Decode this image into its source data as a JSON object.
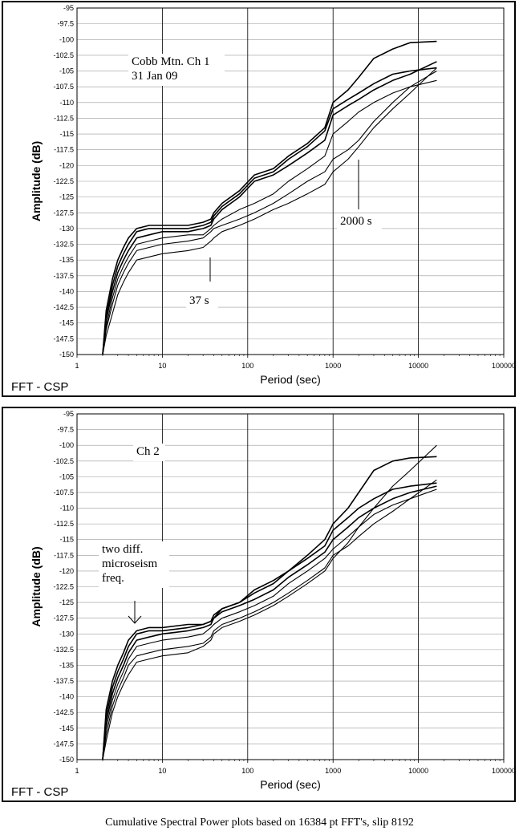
{
  "caption": "Cumulative Spectral Power plots based on 16384 pt FFT's, slip 8192",
  "chart_data": [
    {
      "type": "line",
      "id": "top",
      "xscale": "log",
      "xlim": [
        1,
        100000
      ],
      "ylim": [
        -150,
        -95
      ],
      "grid": true,
      "xlabel": "Period (sec)",
      "ylabel": "Amplitude (dB)",
      "corner_label": "FFT - CSP",
      "xticks": [
        "1",
        "10",
        "100",
        "1000",
        "10000",
        "100000"
      ],
      "yticks": [
        "-95",
        "-97.5",
        "-100",
        "-102.5",
        "-105",
        "-107.5",
        "-110",
        "-112.5",
        "-115",
        "-117.5",
        "-120",
        "-122.5",
        "-125",
        "-127.5",
        "-130",
        "-132.5",
        "-135",
        "-137.5",
        "-140",
        "-142.5",
        "-145",
        "-147.5",
        "-150"
      ],
      "annotations": [
        {
          "text": "Cobb Mtn. Ch 1"
        },
        {
          "text": "31 Jan 09"
        },
        {
          "text": "2000 s",
          "points_to_x": 2000
        },
        {
          "text": "37 s",
          "points_to_x": 37
        }
      ],
      "series": [
        {
          "x": [
            2,
            2.2,
            2.6,
            3,
            3.5,
            4,
            5,
            7,
            10,
            20,
            30,
            37,
            40,
            50,
            80,
            120,
            200,
            300,
            500,
            800,
            1000,
            1500,
            2000,
            3000,
            5000,
            8000,
            16384
          ],
          "y": [
            -150,
            -143,
            -138,
            -135,
            -133,
            -131.5,
            -130,
            -129.5,
            -129.5,
            -129.5,
            -129,
            -128.5,
            -127.5,
            -126,
            -124,
            -121.5,
            -120.5,
            -118.5,
            -116.5,
            -114,
            -110,
            -108,
            -106,
            -103,
            -101.5,
            -100.5,
            -100.3
          ]
        },
        {
          "x": [
            2,
            2.2,
            2.6,
            3,
            3.5,
            4,
            5,
            7,
            10,
            20,
            30,
            37,
            40,
            50,
            80,
            120,
            200,
            300,
            500,
            800,
            1000,
            1500,
            2000,
            3000,
            5000,
            8000,
            16384
          ],
          "y": [
            -150,
            -144,
            -139,
            -136,
            -134,
            -132.5,
            -130.5,
            -130,
            -130,
            -130,
            -129.5,
            -129,
            -128,
            -126.5,
            -124.5,
            -122,
            -121,
            -119,
            -117,
            -114.5,
            -111,
            -109.5,
            -108.5,
            -107,
            -105.5,
            -105,
            -104.5
          ]
        },
        {
          "x": [
            2,
            2.2,
            2.6,
            3,
            3.5,
            4,
            5,
            7,
            10,
            20,
            30,
            37,
            40,
            50,
            80,
            120,
            200,
            300,
            500,
            800,
            1000,
            1500,
            2000,
            3000,
            5000,
            8000,
            16384
          ],
          "y": [
            -150,
            -144.5,
            -140,
            -137,
            -135,
            -133.5,
            -131.5,
            -131,
            -130.5,
            -130.5,
            -130,
            -129.5,
            -128.5,
            -127,
            -125,
            -122.5,
            -121.5,
            -120,
            -118,
            -116,
            -112,
            -110.5,
            -109.5,
            -108,
            -106.5,
            -105.5,
            -103.5
          ]
        },
        {
          "x": [
            2,
            2.2,
            2.6,
            3,
            3.5,
            4,
            5,
            7,
            10,
            20,
            30,
            37,
            40,
            50,
            80,
            120,
            200,
            300,
            500,
            800,
            1000,
            1500,
            2000,
            3000,
            5000,
            8000,
            16384
          ],
          "y": [
            -150,
            -145.5,
            -141,
            -138,
            -136,
            -134.5,
            -132.5,
            -132,
            -131.5,
            -131,
            -131,
            -130,
            -129.5,
            -128.5,
            -127,
            -126,
            -124.5,
            -122.5,
            -120.5,
            -118.5,
            -115,
            -113,
            -111.5,
            -110,
            -108.5,
            -107.5,
            -106.5
          ]
        },
        {
          "x": [
            2,
            2.2,
            2.6,
            3,
            3.5,
            4,
            5,
            7,
            10,
            20,
            30,
            37,
            40,
            50,
            80,
            120,
            200,
            300,
            500,
            800,
            1000,
            1500,
            2000,
            3000,
            5000,
            8000,
            16384
          ],
          "y": [
            -150,
            -146,
            -142,
            -139,
            -137,
            -135.5,
            -133.5,
            -133,
            -132.5,
            -132,
            -131.5,
            -130.5,
            -130,
            -129.5,
            -128.5,
            -127.5,
            -126,
            -124.5,
            -122.5,
            -121,
            -119,
            -117.5,
            -116,
            -113,
            -110,
            -107.5,
            -105
          ]
        },
        {
          "x": [
            2,
            2.2,
            2.6,
            3,
            3.5,
            4,
            5,
            7,
            10,
            20,
            30,
            37,
            40,
            50,
            80,
            120,
            200,
            300,
            500,
            800,
            1000,
            1500,
            2000,
            3000,
            5000,
            8000,
            16384
          ],
          "y": [
            -150,
            -147,
            -143.5,
            -140.5,
            -138.5,
            -137,
            -135,
            -134.5,
            -134,
            -133.5,
            -133,
            -132,
            -131.5,
            -130.5,
            -129.5,
            -128.5,
            -127,
            -126,
            -124.5,
            -123,
            -121,
            -119,
            -117,
            -114,
            -111,
            -108.5,
            -104.5
          ]
        }
      ]
    },
    {
      "type": "line",
      "id": "bottom",
      "xscale": "log",
      "xlim": [
        1,
        100000
      ],
      "ylim": [
        -150,
        -95
      ],
      "grid": true,
      "xlabel": "Period (sec)",
      "ylabel": "Amplitude (dB)",
      "corner_label": "FFT - CSP",
      "xticks": [
        "1",
        "10",
        "100",
        "1000",
        "10000",
        "100000"
      ],
      "yticks": [
        "-95",
        "-97.5",
        "-100",
        "-102.5",
        "-105",
        "-107.5",
        "-110",
        "-112.5",
        "-115",
        "-117.5",
        "-120",
        "-122.5",
        "-125",
        "-127.5",
        "-130",
        "-132.5",
        "-135",
        "-137.5",
        "-140",
        "-142.5",
        "-145",
        "-147.5",
        "-150"
      ],
      "annotations": [
        {
          "text": "Ch 2"
        },
        {
          "text": "two diff."
        },
        {
          "text": "microseism"
        },
        {
          "text": "freq.",
          "points_to_x": 5
        }
      ],
      "series": [
        {
          "x": [
            2,
            2.2,
            2.6,
            3,
            3.5,
            4,
            5,
            7,
            10,
            20,
            30,
            37,
            40,
            50,
            80,
            120,
            200,
            300,
            500,
            800,
            1000,
            1500,
            2000,
            3000,
            5000,
            8000,
            16384
          ],
          "y": [
            -150,
            -142,
            -137.5,
            -135,
            -133,
            -131,
            -129.5,
            -129,
            -129,
            -128.5,
            -128.5,
            -128,
            -127.5,
            -126,
            -125,
            -123,
            -121.5,
            -120,
            -117.5,
            -115,
            -112.5,
            -110,
            -107.5,
            -104,
            -102.5,
            -102,
            -101.8
          ]
        },
        {
          "x": [
            2,
            2.2,
            2.6,
            3,
            3.5,
            4,
            5,
            7,
            10,
            20,
            30,
            37,
            40,
            50,
            80,
            120,
            200,
            300,
            500,
            800,
            1000,
            1500,
            2000,
            3000,
            5000,
            8000,
            16384
          ],
          "y": [
            -150,
            -143,
            -138.5,
            -136,
            -134,
            -132,
            -130,
            -129.5,
            -129.5,
            -129,
            -128.5,
            -128,
            -127,
            -126,
            -125,
            -123.5,
            -122,
            -120,
            -118,
            -116,
            -113.5,
            -111.5,
            -110,
            -108.5,
            -107,
            -106.5,
            -106
          ]
        },
        {
          "x": [
            2,
            2.2,
            2.6,
            3,
            3.5,
            4,
            5,
            7,
            10,
            20,
            30,
            37,
            40,
            50,
            80,
            120,
            200,
            300,
            500,
            800,
            1000,
            1500,
            2000,
            3000,
            5000,
            8000,
            16384
          ],
          "y": [
            -150,
            -144,
            -139.5,
            -137,
            -135,
            -133,
            -131,
            -130.5,
            -130,
            -129.5,
            -129,
            -128.5,
            -127.5,
            -126.5,
            -125.5,
            -124.5,
            -123,
            -121,
            -119,
            -117,
            -115,
            -113,
            -111.5,
            -110,
            -108.5,
            -107.5,
            -106.5
          ]
        },
        {
          "x": [
            2,
            2.2,
            2.6,
            3,
            3.5,
            4,
            5,
            7,
            10,
            20,
            30,
            37,
            40,
            50,
            80,
            120,
            200,
            300,
            500,
            800,
            1000,
            1500,
            2000,
            3000,
            5000,
            8000,
            16384
          ],
          "y": [
            -150,
            -145,
            -140.5,
            -138,
            -136,
            -134,
            -132,
            -131.5,
            -131,
            -130.5,
            -130,
            -129,
            -128.5,
            -127.5,
            -126.5,
            -125.5,
            -124,
            -122,
            -120,
            -118,
            -116.5,
            -114.5,
            -113,
            -111,
            -109.5,
            -108.5,
            -107
          ]
        },
        {
          "x": [
            2,
            2.2,
            2.6,
            3,
            3.5,
            4,
            5,
            7,
            10,
            20,
            30,
            37,
            40,
            50,
            80,
            120,
            200,
            300,
            500,
            800,
            1000,
            1500,
            2000,
            3000,
            5000,
            8000,
            16384
          ],
          "y": [
            -150,
            -146,
            -141.5,
            -139,
            -137,
            -135,
            -133.5,
            -133,
            -132.5,
            -132,
            -131.5,
            -130.5,
            -129.5,
            -128.5,
            -127.5,
            -126.5,
            -125,
            -123.5,
            -121.5,
            -119.5,
            -117.5,
            -116,
            -114.5,
            -112.5,
            -110.5,
            -108.5,
            -105.5
          ]
        },
        {
          "x": [
            2,
            2.2,
            2.6,
            3,
            3.5,
            4,
            5,
            7,
            10,
            20,
            30,
            37,
            40,
            50,
            80,
            120,
            200,
            300,
            500,
            800,
            1000,
            1500,
            2000,
            3000,
            5000,
            8000,
            16384
          ],
          "y": [
            -150,
            -147,
            -142.5,
            -140,
            -138,
            -136.5,
            -134.5,
            -134,
            -133.5,
            -133,
            -132,
            -131,
            -130,
            -129,
            -128,
            -127,
            -125.5,
            -124,
            -122,
            -120,
            -118,
            -115.5,
            -113,
            -110,
            -106.5,
            -104,
            -100
          ]
        }
      ]
    }
  ]
}
